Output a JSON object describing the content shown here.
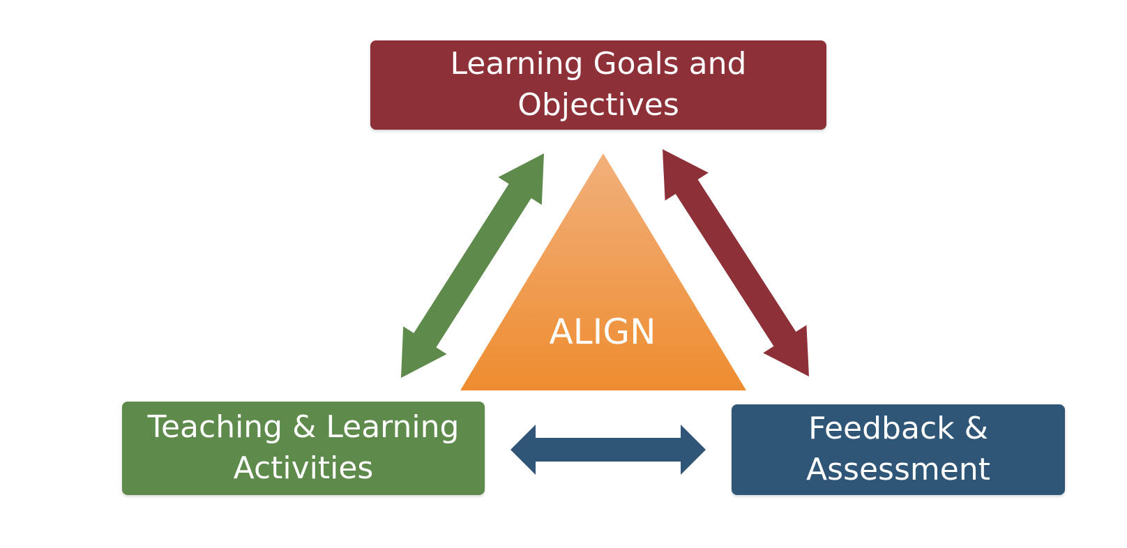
{
  "nodes": {
    "goals": {
      "label_line1": "Learning Goals and",
      "label_line2": "Objectives",
      "color": "#8e3038"
    },
    "activities": {
      "label_line1": "Teaching & Learning",
      "label_line2": "Activities",
      "color": "#5e8a4b"
    },
    "assessment": {
      "label_line1": "Feedback &",
      "label_line2": "Assessment",
      "color": "#2f5577"
    }
  },
  "center": {
    "label": "ALIGN",
    "color_top": "#f1b07b",
    "color_bottom": "#ee8c2f"
  },
  "arrows": {
    "goals_activities": {
      "color": "#5e8a4b"
    },
    "goals_assessment": {
      "color": "#8e3038"
    },
    "activities_assessment": {
      "color": "#2f5577"
    }
  }
}
